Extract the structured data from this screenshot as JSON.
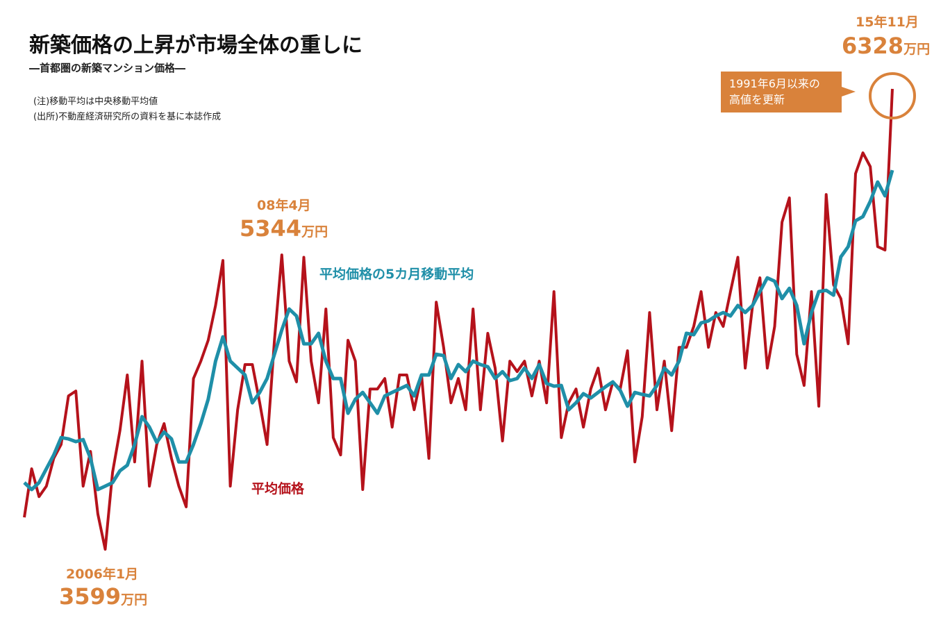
{
  "chart_data": {
    "type": "line",
    "title": "新築価格の上昇が市場全体の重しに",
    "subtitle": "―首都圏の新築マンション価格―",
    "notes": [
      "(注)移動平均は中央移動平均値",
      "(出所)不動産経済研究所の資料を基に本誌作成"
    ],
    "series": [
      {
        "name": "平均価格",
        "color": "#b5121b",
        "values": [
          3788,
          4076,
          3911,
          3973,
          4138,
          4220,
          4508,
          4537,
          3973,
          4179,
          3808,
          3599,
          4055,
          4302,
          4632,
          4117,
          4714,
          3973,
          4220,
          4344,
          4138,
          3973,
          3850,
          4611,
          4714,
          4838,
          5044,
          5311,
          3973,
          4426,
          4694,
          4694,
          4467,
          4220,
          4838,
          5344,
          4714,
          4591,
          5330,
          4714,
          4467,
          5023,
          4261,
          4158,
          4838,
          4714,
          3953,
          4549,
          4549,
          4611,
          4323,
          4632,
          4632,
          4426,
          4632,
          4138,
          5064,
          4796,
          4467,
          4611,
          4426,
          5023,
          4426,
          4879,
          4673,
          4241,
          4714,
          4652,
          4714,
          4508,
          4714,
          4467,
          5126,
          4261,
          4467,
          4549,
          4323,
          4549,
          4673,
          4426,
          4591,
          4549,
          4776,
          4117,
          4385,
          5002,
          4426,
          4714,
          4302,
          4796,
          4796,
          4920,
          5126,
          4796,
          5002,
          4920,
          5126,
          5330,
          4673,
          5044,
          5208,
          4673,
          4920,
          5538,
          5682,
          4755,
          4570,
          5126,
          4447,
          5702,
          5167,
          5085,
          4817,
          5826,
          5949,
          5867,
          5393,
          5373,
          6328
        ]
      },
      {
        "name": "平均価格の5カ月移動平均",
        "color": "#1f8fa8",
        "values": [
          3994,
          3953,
          3994,
          4076,
          4158,
          4261,
          4253,
          4237,
          4249,
          4138,
          3953,
          3973,
          3994,
          4064,
          4097,
          4220,
          4385,
          4323,
          4233,
          4294,
          4253,
          4117,
          4117,
          4220,
          4344,
          4488,
          4714,
          4858,
          4714,
          4673,
          4632,
          4467,
          4529,
          4611,
          4755,
          4899,
          5023,
          4982,
          4817,
          4817,
          4879,
          4714,
          4611,
          4611,
          4405,
          4488,
          4529,
          4467,
          4405,
          4508,
          4529,
          4549,
          4570,
          4508,
          4632,
          4632,
          4755,
          4747,
          4611,
          4694,
          4652,
          4714,
          4694,
          4681,
          4611,
          4652,
          4599,
          4611,
          4673,
          4611,
          4694,
          4582,
          4566,
          4570,
          4426,
          4467,
          4521,
          4496,
          4529,
          4562,
          4591,
          4541,
          4447,
          4529,
          4517,
          4508,
          4570,
          4673,
          4632,
          4714,
          4879,
          4871,
          4941,
          4953,
          4982,
          5002,
          4982,
          5044,
          5002,
          5044,
          5126,
          5208,
          5188,
          5085,
          5146,
          5044,
          4817,
          5002,
          5126,
          5134,
          5105,
          5332,
          5393,
          5546,
          5571,
          5661,
          5776,
          5694,
          5846
        ]
      }
    ],
    "annotations": [
      {
        "date": "2006年1月",
        "value": "3599",
        "unit": "万円"
      },
      {
        "date": "08年4月",
        "value": "5344",
        "unit": "万円"
      },
      {
        "date": "15年11月",
        "value": "6328",
        "unit": "万円"
      }
    ],
    "callout": [
      "1991年6月以来の",
      "高値を更新"
    ]
  }
}
